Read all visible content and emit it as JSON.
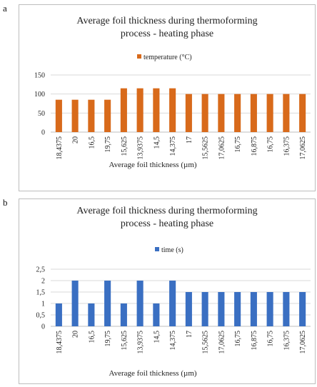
{
  "panels": {
    "a": {
      "letter": "a"
    },
    "b": {
      "letter": "b"
    }
  },
  "chart_data": [
    {
      "type": "bar",
      "title": "Average foil thickness during thermoforming process - heating phase",
      "title_lines": [
        "Average foil thickness during thermoforming",
        "process - heating phase"
      ],
      "xlabel": "Average foil thickness (µm)",
      "ylabel": "",
      "categories": [
        "18,4375",
        "20",
        "16,5",
        "19,75",
        "15,625",
        "13,9375",
        "14,5",
        "14,375",
        "17",
        "15,5625",
        "17,0625",
        "16,75",
        "16,875",
        "16,75",
        "16,375",
        "17,0625"
      ],
      "series": [
        {
          "name": "temperature (°C)",
          "values": [
            85,
            85,
            85,
            85,
            115,
            115,
            115,
            115,
            100,
            100,
            100,
            100,
            100,
            100,
            100,
            100
          ],
          "color": "#d86a1b"
        }
      ],
      "ylim": [
        0,
        150
      ],
      "yticks": [
        0,
        50,
        100,
        150
      ],
      "ytick_labels": [
        "0",
        "50",
        "100",
        "150"
      ],
      "grid": true,
      "legend": "top"
    },
    {
      "type": "bar",
      "title": "Average foil thickness during thermoforming process - heating phase",
      "title_lines": [
        "Average foil thickness during thermoforming",
        "process - heating phase"
      ],
      "xlabel": "Average foil thickness (µm)",
      "ylabel": "",
      "categories": [
        "18,4375",
        "20",
        "16,5",
        "19,75",
        "15,625",
        "13,9375",
        "14,5",
        "14,375",
        "17",
        "15,5625",
        "17,0625",
        "16,75",
        "16,875",
        "16,75",
        "16,375",
        "17,0625"
      ],
      "series": [
        {
          "name": "time (s)",
          "values": [
            1,
            2,
            1,
            2,
            1,
            2,
            1,
            2,
            1.5,
            1.5,
            1.5,
            1.5,
            1.5,
            1.5,
            1.5,
            1.5
          ],
          "color": "#3a6fc2"
        }
      ],
      "ylim": [
        0,
        2.5
      ],
      "yticks": [
        0,
        0.5,
        1,
        1.5,
        2,
        2.5
      ],
      "ytick_labels": [
        "0",
        "0,5",
        "1",
        "1,5",
        "2",
        "2,5"
      ],
      "grid": true,
      "legend": "top"
    }
  ]
}
